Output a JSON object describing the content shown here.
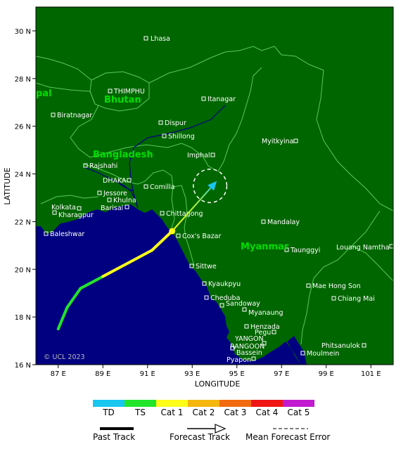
{
  "map": {
    "axis_labels": {
      "x": "LONGITUDE",
      "y": "LATITUDE"
    },
    "lat_ticks": [
      "30 N",
      "28 N",
      "26 N",
      "24 N",
      "22 N",
      "20 N",
      "18 N",
      "16 N"
    ],
    "lon_ticks": [
      "87 E",
      "89 E",
      "91 E",
      "93 E",
      "95 E",
      "97 E",
      "99 E",
      "101 E"
    ],
    "countries": {
      "bhutan": "Bhutan",
      "bangladesh": "Bangladesh",
      "myanmar": "Myanmar",
      "nepal_partial": "pal"
    },
    "cities": {
      "lhasa": "Lhasa",
      "thimphu": "THIMPHU",
      "itanagar": "Itanagar",
      "biratnagar": "Biratnagar",
      "dispur": "Dispur",
      "shillong": "Shillong",
      "myitkyina": "Myitkyina",
      "imphal": "Imphal",
      "rajshahi": "Rajshahi",
      "dhaka": "DHAKA",
      "jessore": "Jessore",
      "khulna": "Khulna",
      "barisal": "Barisal",
      "comilla": "Comilla",
      "kolkata": "Kolkata",
      "kharagpur": "Kharagpur",
      "chittagong": "Chittagong",
      "baleshwar": "Baleshwar",
      "coxs_bazar": "Cox's Bazar",
      "mandalay": "Mandalay",
      "taunggyi": "Taunggyi",
      "louang_namtha": "Louang Namtha",
      "sittwe": "Sittwe",
      "kyaukpyu": "Kyaukpyu",
      "cheduba": "Cheduba",
      "sandoway": "Sandoway",
      "mae_hong_son": "Mae Hong Son",
      "chiang_mai": "Chiang Mai",
      "myanaung": "Myanaung",
      "henzada": "Henzada",
      "pegu": "Pegu",
      "yangon": "YANGON",
      "rangoon": "RANGOON",
      "bassein": "Bassein",
      "pyapon": "Pyapon",
      "phitsanulok": "Phitsanulok",
      "moulmein": "Moulmein"
    },
    "copyright": "© UCL 2023",
    "past_track": [
      [
        87.0,
        17.5
      ],
      [
        87.4,
        18.4
      ],
      [
        88.0,
        19.2
      ],
      [
        89.0,
        19.7
      ],
      [
        90.2,
        20.3
      ],
      [
        91.2,
        20.8
      ],
      [
        92.1,
        21.6
      ]
    ],
    "past_track_colors": [
      "#22e52a",
      "#22e52a",
      "#22e52a",
      "#fdfd1a",
      "#fdfd1a",
      "#fdfd1a"
    ],
    "current_position": [
      92.1,
      21.6
    ],
    "forecast_track": [
      [
        92.1,
        21.6
      ],
      [
        94.1,
        23.7
      ]
    ],
    "forecast_error_circle": {
      "center": [
        93.8,
        23.5
      ],
      "radius_deg": 0.75
    }
  },
  "legend": {
    "categories": [
      {
        "label": "TD",
        "color": "#18c6f0"
      },
      {
        "label": "TS",
        "color": "#22e52a"
      },
      {
        "label": "Cat 1",
        "color": "#fdfd1a"
      },
      {
        "label": "Cat 2",
        "color": "#f5b60e"
      },
      {
        "label": "Cat 3",
        "color": "#f26a10"
      },
      {
        "label": "Cat 4",
        "color": "#ef1515"
      },
      {
        "label": "Cat 5",
        "color": "#c21bd0"
      }
    ],
    "past_track": "Past Track",
    "forecast_track": "Forecast Track",
    "mean_error": "Mean Forecast Error"
  },
  "colors": {
    "land": "#006600",
    "sea": "#000080",
    "border": "#55cc55",
    "label": "#00dd00"
  }
}
